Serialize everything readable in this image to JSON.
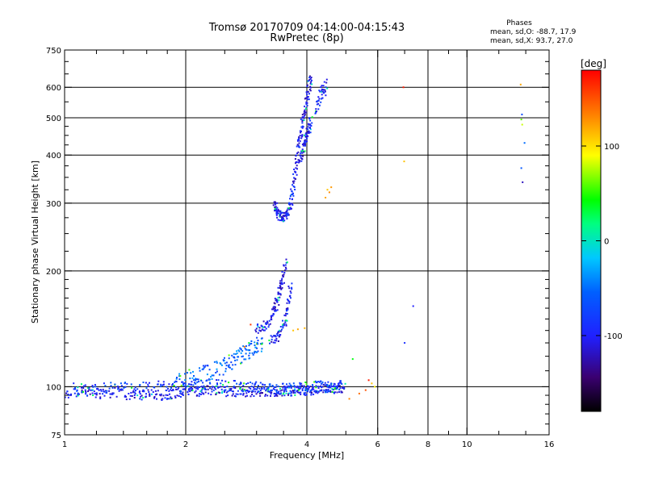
{
  "header": {
    "title": "Tromsø 20170709 04:14:00-04:15:43",
    "subtitle": "RwPretec (8p)",
    "phases_title": "Phases",
    "phases_o": "mean, sd,O: -88.7, 17.9",
    "phases_x": "mean, sd,X:  93.7, 27.0"
  },
  "chart_data": {
    "type": "scatter",
    "xlabel": "Frequency [MHz]",
    "ylabel": "Stationary phase Virtual Height [km]",
    "xscale": "log",
    "yscale": "log",
    "xlim": [
      1,
      16
    ],
    "ylim": [
      75,
      750
    ],
    "xticks": [
      1,
      2,
      4,
      6,
      8,
      10,
      16
    ],
    "yticks": [
      75,
      100,
      200,
      300,
      400,
      500,
      600,
      750
    ],
    "xgrid": [
      2,
      4,
      6,
      8,
      10
    ],
    "ygrid": [
      100,
      200,
      300,
      400,
      500,
      600
    ],
    "colorbar": {
      "label": "[deg]",
      "range": [
        -180,
        180
      ],
      "ticks": [
        100,
        0,
        -100
      ]
    },
    "traces": [
      {
        "x": [
          1.0,
          1.08,
          1.16,
          1.25,
          1.35,
          1.45,
          1.55,
          1.65,
          1.75,
          1.85,
          1.95,
          2.05,
          2.15,
          2.25,
          2.4,
          2.55,
          2.7,
          2.85,
          3.0,
          3.15,
          3.3,
          3.45,
          3.6,
          3.75,
          3.9,
          4.05,
          4.2,
          4.4,
          4.6,
          4.8,
          5.0
        ],
        "y": [
          95,
          97,
          96,
          96,
          97,
          95,
          95,
          96,
          95,
          96,
          97,
          98,
          97,
          98,
          98,
          97,
          97,
          97,
          97,
          97,
          97,
          97,
          98,
          97,
          98,
          98,
          98,
          99,
          99,
          99,
          100
        ],
        "phase": -105,
        "spread": 0.03
      },
      {
        "x": [
          1.05,
          1.15,
          1.25,
          1.4,
          1.55,
          1.7,
          1.85,
          2.0,
          2.15,
          2.3,
          2.5,
          2.7,
          2.9,
          3.1,
          3.3,
          3.5,
          3.7,
          3.9,
          4.1,
          4.3,
          4.5,
          4.7,
          4.9
        ],
        "y": [
          99,
          98,
          99,
          100,
          99,
          100,
          101,
          100,
          101,
          101,
          101,
          100,
          100,
          99,
          99,
          99,
          99,
          99,
          100,
          100,
          100,
          100,
          100
        ],
        "phase": -80,
        "spread": 0.035
      },
      {
        "x": [
          1.9,
          2.05,
          2.2,
          2.35,
          2.5,
          2.6,
          2.7,
          2.8,
          2.9,
          3.0,
          3.1
        ],
        "y": [
          103,
          106,
          108,
          110,
          113,
          116,
          119,
          122,
          125,
          128,
          130
        ],
        "phase": -55,
        "spread": 0.05
      },
      {
        "x": [
          3.0,
          3.1,
          3.2,
          3.3,
          3.35,
          3.4,
          3.45,
          3.5,
          3.55
        ],
        "y": [
          140,
          143,
          147,
          155,
          162,
          172,
          182,
          195,
          215
        ],
        "phase": -105,
        "spread": 0.03
      },
      {
        "x": [
          3.25,
          3.35,
          3.45,
          3.55,
          3.6,
          3.65
        ],
        "y": [
          132,
          134,
          138,
          150,
          165,
          185
        ],
        "phase": -100,
        "spread": 0.03
      },
      {
        "x": [
          3.3,
          3.35,
          3.4,
          3.45,
          3.5,
          3.55,
          3.6,
          3.65,
          3.7,
          3.75,
          3.8
        ],
        "y": [
          300,
          290,
          282,
          278,
          275,
          278,
          285,
          300,
          330,
          360,
          400
        ],
        "phase": -100,
        "spread": 0.03
      },
      {
        "x": [
          3.8,
          3.85,
          3.9,
          3.95,
          4.0,
          4.05,
          4.1
        ],
        "y": [
          420,
          450,
          480,
          520,
          560,
          600,
          640
        ],
        "phase": -105,
        "spread": 0.04
      },
      {
        "x": [
          3.85,
          3.9,
          3.95,
          4.0,
          4.05,
          4.1
        ],
        "y": [
          380,
          410,
          430,
          450,
          470,
          500
        ],
        "phase": -100,
        "spread": 0.03
      },
      {
        "x": [
          4.2,
          4.3,
          4.4,
          4.5
        ],
        "y": [
          520,
          560,
          590,
          610
        ],
        "phase": -95,
        "spread": 0.04
      }
    ],
    "extra_points": [
      {
        "x": 4.45,
        "y": 310,
        "phase": 120
      },
      {
        "x": 4.5,
        "y": 325,
        "phase": 110
      },
      {
        "x": 4.55,
        "y": 320,
        "phase": 130
      },
      {
        "x": 4.6,
        "y": 330,
        "phase": 125
      },
      {
        "x": 3.7,
        "y": 140,
        "phase": 110
      },
      {
        "x": 3.8,
        "y": 141,
        "phase": 120
      },
      {
        "x": 3.95,
        "y": 142,
        "phase": 115
      },
      {
        "x": 5.1,
        "y": 93,
        "phase": 130
      },
      {
        "x": 5.4,
        "y": 96,
        "phase": 140
      },
      {
        "x": 5.6,
        "y": 98,
        "phase": 150
      },
      {
        "x": 5.7,
        "y": 104,
        "phase": 170
      },
      {
        "x": 5.8,
        "y": 102,
        "phase": 110
      },
      {
        "x": 5.9,
        "y": 100,
        "phase": 95
      },
      {
        "x": 5.2,
        "y": 118,
        "phase": 40
      },
      {
        "x": 2.9,
        "y": 145,
        "phase": 160
      },
      {
        "x": 2.8,
        "y": 127,
        "phase": 140
      },
      {
        "x": 6.95,
        "y": 600,
        "phase": 170
      },
      {
        "x": 6.98,
        "y": 385,
        "phase": 110
      },
      {
        "x": 7.0,
        "y": 130,
        "phase": -90
      },
      {
        "x": 7.35,
        "y": 162,
        "phase": -100
      },
      {
        "x": 13.6,
        "y": 610,
        "phase": 120
      },
      {
        "x": 13.65,
        "y": 495,
        "phase": 60
      },
      {
        "x": 13.7,
        "y": 510,
        "phase": -70
      },
      {
        "x": 13.72,
        "y": 480,
        "phase": 80
      },
      {
        "x": 13.65,
        "y": 370,
        "phase": -60
      },
      {
        "x": 13.9,
        "y": 430,
        "phase": -50
      },
      {
        "x": 13.75,
        "y": 340,
        "phase": -120
      }
    ]
  }
}
